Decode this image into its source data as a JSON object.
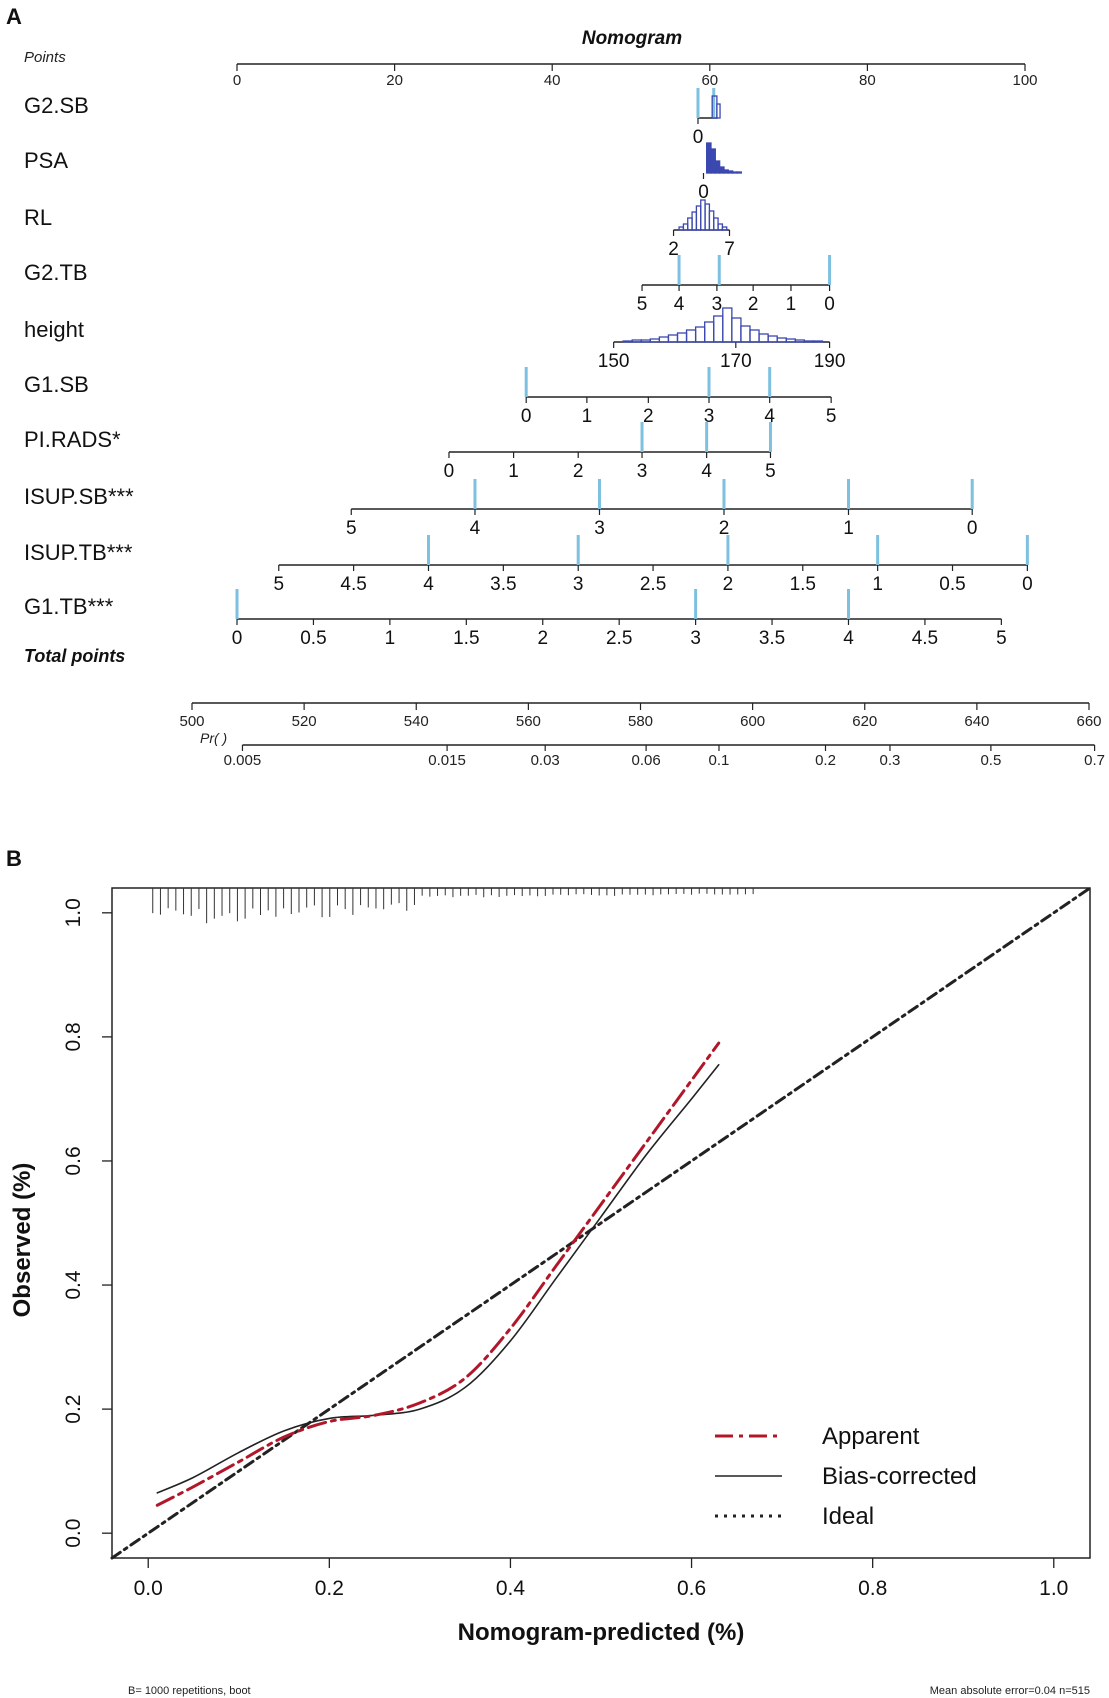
{
  "colors": {
    "axis": "#222222",
    "tick_mark": "#7ec0e0",
    "hist": "#3b48b0",
    "apparent": "#b0182a",
    "bias": "#222222",
    "ideal": "#222222"
  },
  "chart_data": [
    {
      "panel": "A",
      "type": "nomogram",
      "title": "Nomogram",
      "points_label": "Points",
      "points_axis": {
        "range": [
          0,
          100
        ],
        "ticks": [
          0,
          20,
          40,
          60,
          80,
          100
        ]
      },
      "variables": [
        {
          "name": "G2.SB",
          "ticks": [
            {
              "label": "0",
              "points": 58.5
            }
          ],
          "axis_range": [
            58.5,
            61
          ],
          "marks": [
            58.5,
            60.5
          ],
          "hist": "spike"
        },
        {
          "name": "PSA",
          "ticks": [
            {
              "label": "0",
              "points": 59.2
            }
          ],
          "axis_range": [
            59.2,
            59.2
          ],
          "marks": [],
          "hist": "skewed"
        },
        {
          "name": "RL",
          "ticks": [
            {
              "label": "2",
              "points": 55.4
            },
            {
              "label": "7",
              "points": 62.5
            }
          ],
          "axis_range": [
            55.4,
            62.5
          ],
          "marks": [],
          "hist": "bell"
        },
        {
          "name": "G2.TB",
          "ticks": [
            {
              "label": "5",
              "points": 51.4
            },
            {
              "label": "4",
              "points": 56.1
            },
            {
              "label": "3",
              "points": 60.9
            },
            {
              "label": "2",
              "points": 65.5
            },
            {
              "label": "1",
              "points": 70.3
            },
            {
              "label": "0",
              "points": 75.2
            }
          ],
          "axis_range": [
            51.4,
            75.2
          ],
          "marks": [
            56.1,
            61.2,
            75.2
          ]
        },
        {
          "name": "height",
          "ticks": [
            {
              "label": "150",
              "points": 47.8
            },
            {
              "label": "170",
              "points": 63.3
            },
            {
              "label": "190",
              "points": 75.2
            }
          ],
          "axis_range": [
            47.8,
            75.2
          ],
          "marks": [],
          "hist": "wide"
        },
        {
          "name": "G1.SB",
          "ticks": [
            {
              "label": "0",
              "points": 36.7
            },
            {
              "label": "1",
              "points": 44.4
            },
            {
              "label": "2",
              "points": 52.2
            },
            {
              "label": "3",
              "points": 59.9
            },
            {
              "label": "4",
              "points": 67.6
            },
            {
              "label": "5",
              "points": 75.4
            }
          ],
          "axis_range": [
            36.7,
            75.4
          ],
          "marks": [
            36.7,
            59.9,
            67.6
          ]
        },
        {
          "name": "PI.RADS*",
          "ticks": [
            {
              "label": "0",
              "points": 26.9
            },
            {
              "label": "1",
              "points": 35.1
            },
            {
              "label": "2",
              "points": 43.3
            },
            {
              "label": "3",
              "points": 51.4
            },
            {
              "label": "4",
              "points": 59.6
            },
            {
              "label": "5",
              "points": 67.7
            }
          ],
          "axis_range": [
            26.9,
            67.7
          ],
          "marks": [
            51.4,
            59.6,
            67.7
          ]
        },
        {
          "name": "ISUP.SB***",
          "ticks": [
            {
              "label": "5",
              "points": 14.5
            },
            {
              "label": "4",
              "points": 30.2
            },
            {
              "label": "3",
              "points": 46.0
            },
            {
              "label": "2",
              "points": 61.8
            },
            {
              "label": "1",
              "points": 77.6
            },
            {
              "label": "0",
              "points": 93.3
            }
          ],
          "axis_range": [
            14.5,
            93.3
          ],
          "marks": [
            30.2,
            46.0,
            61.8,
            77.6,
            93.3
          ]
        },
        {
          "name": "ISUP.TB***",
          "ticks": [
            {
              "label": "5",
              "points": 5.3
            },
            {
              "label": "4.5",
              "points": 14.8
            },
            {
              "label": "4",
              "points": 24.3
            },
            {
              "label": "3.5",
              "points": 33.8
            },
            {
              "label": "3",
              "points": 43.3
            },
            {
              "label": "2.5",
              "points": 52.8
            },
            {
              "label": "2",
              "points": 62.3
            },
            {
              "label": "1.5",
              "points": 71.8
            },
            {
              "label": "1",
              "points": 81.3
            },
            {
              "label": "0.5",
              "points": 90.8
            },
            {
              "label": "0",
              "points": 100.3
            }
          ],
          "axis_range": [
            5.3,
            100.3
          ],
          "marks": [
            24.3,
            43.3,
            62.3,
            81.3,
            100.3
          ]
        },
        {
          "name": "G1.TB***",
          "ticks": [
            {
              "label": "0",
              "points": 0
            },
            {
              "label": "0.5",
              "points": 9.7
            },
            {
              "label": "1",
              "points": 19.4
            },
            {
              "label": "1.5",
              "points": 29.1
            },
            {
              "label": "2",
              "points": 38.8
            },
            {
              "label": "2.5",
              "points": 48.5
            },
            {
              "label": "3",
              "points": 58.2
            },
            {
              "label": "3.5",
              "points": 67.9
            },
            {
              "label": "4",
              "points": 77.6
            },
            {
              "label": "4.5",
              "points": 87.3
            },
            {
              "label": "5",
              "points": 97.0
            }
          ],
          "axis_range": [
            0,
            97.0
          ],
          "marks": [
            0,
            58.2,
            77.6
          ]
        }
      ],
      "total_points_label": "Total points",
      "total_points_axis": {
        "range": [
          500,
          660
        ],
        "ticks": [
          500,
          520,
          540,
          560,
          580,
          600,
          620,
          640,
          660
        ]
      },
      "probability_label": "Pr( )",
      "probability_ticks": [
        {
          "label": "0.005",
          "total": 509
        },
        {
          "label": "0.015",
          "total": 545.5
        },
        {
          "label": "0.03",
          "total": 563
        },
        {
          "label": "0.06",
          "total": 581
        },
        {
          "label": "0.1",
          "total": 594
        },
        {
          "label": "0.2",
          "total": 613
        },
        {
          "label": "0.3",
          "total": 624.5
        },
        {
          "label": "0.5",
          "total": 642.5
        },
        {
          "label": "0.7",
          "total": 661
        }
      ]
    },
    {
      "panel": "B",
      "type": "line",
      "title": "",
      "xlabel": "Nomogram-predicted (%)",
      "ylabel": "Observed (%)",
      "xlim": [
        -0.04,
        1.04
      ],
      "ylim": [
        -0.04,
        1.04
      ],
      "x_ticks": [
        "0.0",
        "0.2",
        "0.4",
        "0.6",
        "0.8",
        "1.0"
      ],
      "y_ticks": [
        "0.0",
        "0.2",
        "0.4",
        "0.6",
        "0.8",
        "1.0"
      ],
      "series": [
        {
          "name": "Apparent",
          "style": "dashdot",
          "x": [
            0.01,
            0.05,
            0.1,
            0.15,
            0.2,
            0.25,
            0.3,
            0.35,
            0.4,
            0.45,
            0.5,
            0.55,
            0.6,
            0.63
          ],
          "y": [
            0.045,
            0.075,
            0.115,
            0.155,
            0.18,
            0.19,
            0.21,
            0.25,
            0.33,
            0.43,
            0.53,
            0.63,
            0.73,
            0.79
          ]
        },
        {
          "name": "Bias-corrected",
          "style": "solid",
          "x": [
            0.01,
            0.05,
            0.1,
            0.15,
            0.2,
            0.25,
            0.3,
            0.35,
            0.4,
            0.45,
            0.5,
            0.55,
            0.6,
            0.63
          ],
          "y": [
            0.065,
            0.09,
            0.13,
            0.165,
            0.185,
            0.19,
            0.2,
            0.235,
            0.31,
            0.41,
            0.51,
            0.61,
            0.7,
            0.755
          ]
        },
        {
          "name": "Ideal",
          "style": "dotted",
          "x": [
            -0.04,
            1.04
          ],
          "y": [
            -0.04,
            1.04
          ]
        }
      ],
      "legend": {
        "position": "bottom-right",
        "entries": [
          "Apparent",
          "Bias-corrected",
          "Ideal"
        ]
      },
      "footnote_left": "B= 1000 repetitions, boot",
      "footnote_right": "Mean absolute error=0.04 n=515"
    }
  ]
}
